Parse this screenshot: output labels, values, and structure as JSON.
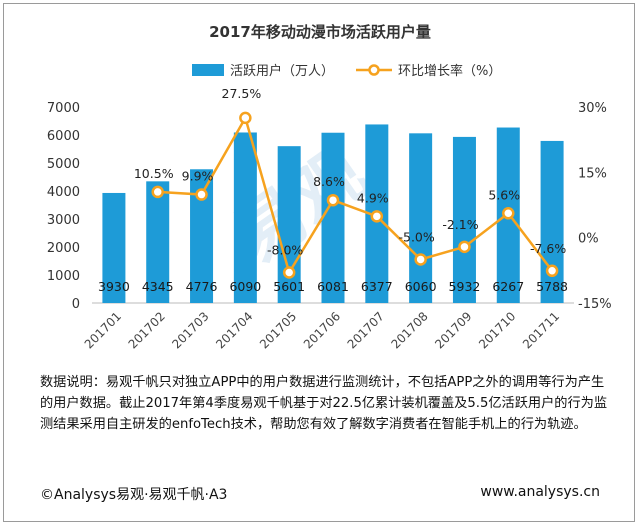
{
  "chart_data": {
    "type": "bar+line",
    "title": "2017年移动动漫市场活跃用户量",
    "categories": [
      "201701",
      "201702",
      "201703",
      "201704",
      "201705",
      "201706",
      "201707",
      "201708",
      "201709",
      "201710",
      "201711"
    ],
    "series": [
      {
        "name": "活跃用户（万人）",
        "type": "bar",
        "axis": "left",
        "values": [
          3930,
          4345,
          4776,
          6090,
          5601,
          6081,
          6377,
          6060,
          5932,
          6267,
          5788
        ],
        "labels": [
          "3930",
          "4345",
          "4776",
          "6090",
          "5601",
          "6081",
          "6377",
          "6060",
          "5932",
          "6267",
          "5788"
        ]
      },
      {
        "name": "环比增长率（%）",
        "type": "line",
        "axis": "right",
        "values": [
          null,
          10.5,
          9.9,
          27.5,
          -8.0,
          8.6,
          4.9,
          -5.0,
          -2.1,
          5.6,
          -7.6
        ],
        "labels": [
          "",
          "10.5%",
          "9.9%",
          "27.5%",
          "-8.0%",
          "8.6%",
          "4.9%",
          "-5.0%",
          "-2.1%",
          "5.6%",
          "-7.6%"
        ]
      }
    ],
    "left_axis": {
      "ylim": [
        0,
        7000
      ],
      "ticks": [
        "0",
        "1000",
        "2000",
        "3000",
        "4000",
        "5000",
        "6000",
        "7000"
      ]
    },
    "right_axis": {
      "ylim": [
        -15,
        30
      ],
      "ticks": [
        "-15%",
        "0%",
        "15%",
        "30%"
      ]
    },
    "legend_placement": "top-center",
    "grid": false,
    "colors": {
      "bar": "#1e9bd7",
      "line": "#f6a21e",
      "marker_fill": "#ffffff"
    }
  },
  "note": "数据说明：易观千帆只对独立APP中的用户数据进行监测统计，不包括APP之外的调用等行为产生的用户数据。截止2017年第4季度易观千帆基于对22.5亿累计装机覆盖及5.5亿活跃用户的行为监测结果采用自主研发的enfoTech技术，帮助您有效了解数字消费者在智能手机上的行为轨迹。",
  "footer": {
    "copyright": "©Analysys易观·易观千帆·A3",
    "website": "www.analysys.cn"
  },
  "watermark": "易观"
}
